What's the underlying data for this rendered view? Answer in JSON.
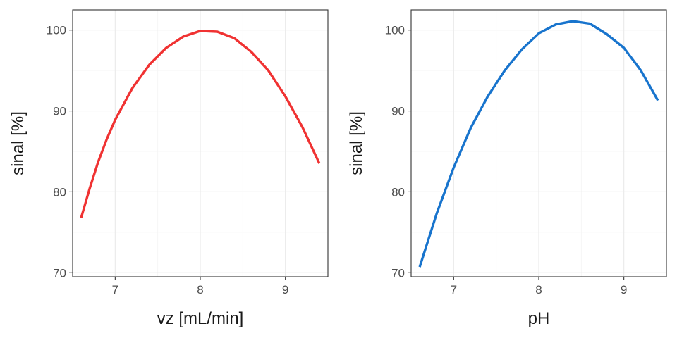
{
  "chart_data": [
    {
      "type": "line",
      "xlabel": "vz [mL/min]",
      "ylabel": "sinal [%]",
      "xlim": [
        6.5,
        9.5
      ],
      "ylim": [
        69.5,
        102.5
      ],
      "xticks": [
        7,
        8,
        9
      ],
      "yticks": [
        70,
        80,
        90,
        100
      ],
      "grid": true,
      "legend": "none",
      "colors": {
        "line": "#f03232",
        "grid_major": "#ebebeb",
        "grid_minor": "#f4f4f4",
        "panel_border": "#333333"
      },
      "series": [
        {
          "x": [
            6.6,
            6.7,
            6.8,
            6.9,
            7.0,
            7.2,
            7.4,
            7.6,
            7.8,
            8.0,
            8.2,
            8.4,
            8.6,
            8.8,
            9.0,
            9.2,
            9.4
          ],
          "y": [
            76.8,
            80.4,
            83.7,
            86.5,
            88.9,
            92.8,
            95.7,
            97.8,
            99.2,
            99.9,
            99.8,
            99.0,
            97.3,
            95.0,
            91.8,
            88.0,
            83.5
          ]
        }
      ]
    },
    {
      "type": "line",
      "xlabel": "pH",
      "ylabel": "sinal [%]",
      "xlim": [
        6.5,
        9.5
      ],
      "ylim": [
        69.5,
        102.5
      ],
      "xticks": [
        7,
        8,
        9
      ],
      "yticks": [
        70,
        80,
        90,
        100
      ],
      "grid": true,
      "legend": "none",
      "colors": {
        "line": "#1874cd",
        "grid_major": "#ebebeb",
        "grid_minor": "#f4f4f4",
        "panel_border": "#333333"
      },
      "series": [
        {
          "x": [
            6.6,
            6.8,
            7.0,
            7.2,
            7.4,
            7.6,
            7.8,
            8.0,
            8.2,
            8.4,
            8.6,
            8.8,
            9.0,
            9.2,
            9.4
          ],
          "y": [
            70.7,
            77.3,
            83.0,
            87.9,
            91.8,
            95.0,
            97.6,
            99.6,
            100.7,
            101.1,
            100.8,
            99.5,
            97.8,
            95.0,
            91.3
          ]
        }
      ]
    }
  ]
}
